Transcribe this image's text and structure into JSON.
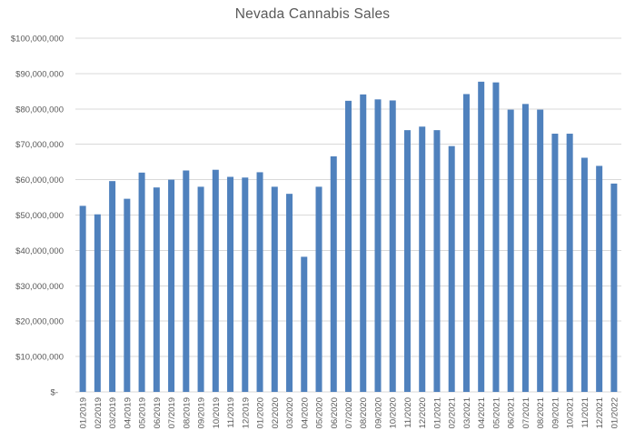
{
  "chart_data": {
    "type": "bar",
    "title": "Nevada Cannabis Sales",
    "xlabel": "",
    "ylabel": "",
    "legend": "none",
    "grid": true,
    "ylim": [
      0,
      100000000
    ],
    "y_tick_step": 10000000,
    "y_ticks": [
      "$-",
      "$10,000,000",
      "$20,000,000",
      "$30,000,000",
      "$40,000,000",
      "$50,000,000",
      "$60,000,000",
      "$70,000,000",
      "$80,000,000",
      "$90,000,000",
      "$100,000,000"
    ],
    "categories": [
      "01/2019",
      "02/2019",
      "03/2019",
      "04/2019",
      "05/2019",
      "06/2019",
      "07/2019",
      "08/2019",
      "09/2019",
      "10/2019",
      "11/2019",
      "12/2019",
      "01/2020",
      "02/2020",
      "03/2020",
      "04/2020",
      "05/2020",
      "06/2020",
      "07/2020",
      "08/2020",
      "09/2020",
      "10/2020",
      "11/2020",
      "12/2020",
      "01/2021",
      "02/2021",
      "03/2021",
      "04/2021",
      "05/2021",
      "06/2021",
      "07/2021",
      "08/2021",
      "09/2021",
      "10/2021",
      "11/2021",
      "12/2021",
      "01/2022"
    ],
    "values": [
      52600000,
      50200000,
      59600000,
      54600000,
      62000000,
      57800000,
      60000000,
      62600000,
      58000000,
      62800000,
      60800000,
      60600000,
      62100000,
      58000000,
      56000000,
      38200000,
      58000000,
      66600000,
      82300000,
      84100000,
      82700000,
      82400000,
      74000000,
      75000000,
      74000000,
      69500000,
      84200000,
      87700000,
      87500000,
      79800000,
      81400000,
      79800000,
      73000000,
      73000000,
      66200000,
      63900000,
      58900000
    ],
    "colors": {
      "bar": "#4F81BD",
      "gridline": "#D9D9D9",
      "axis_line": "#D9D9D9",
      "text": "#595959",
      "background": "#FFFFFF"
    }
  }
}
